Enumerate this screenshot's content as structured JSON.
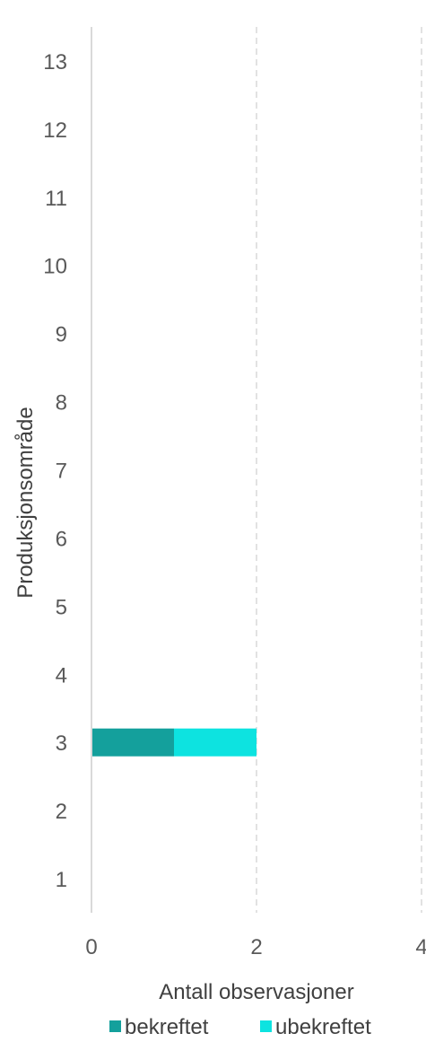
{
  "chart_data": {
    "type": "bar",
    "orientation": "horizontal",
    "stacked": true,
    "categories": [
      "1",
      "2",
      "3",
      "4",
      "5",
      "6",
      "7",
      "8",
      "9",
      "10",
      "11",
      "12",
      "13"
    ],
    "series": [
      {
        "name": "bekreftet",
        "color": "#14a09c",
        "values": [
          0,
          0,
          1,
          0,
          0,
          0,
          0,
          0,
          0,
          0,
          0,
          0,
          0
        ]
      },
      {
        "name": "ubekreftet",
        "color": "#0de3e0",
        "values": [
          0,
          0,
          1,
          0,
          0,
          0,
          0,
          0,
          0,
          0,
          0,
          0,
          0
        ]
      }
    ],
    "xlabel": "Antall observasjoner",
    "ylabel": "Produksjonsområde",
    "xlim": [
      0,
      4
    ],
    "xticks": [
      "0",
      "2",
      "4"
    ],
    "grid": "vertical dashed",
    "legend_position": "bottom"
  }
}
